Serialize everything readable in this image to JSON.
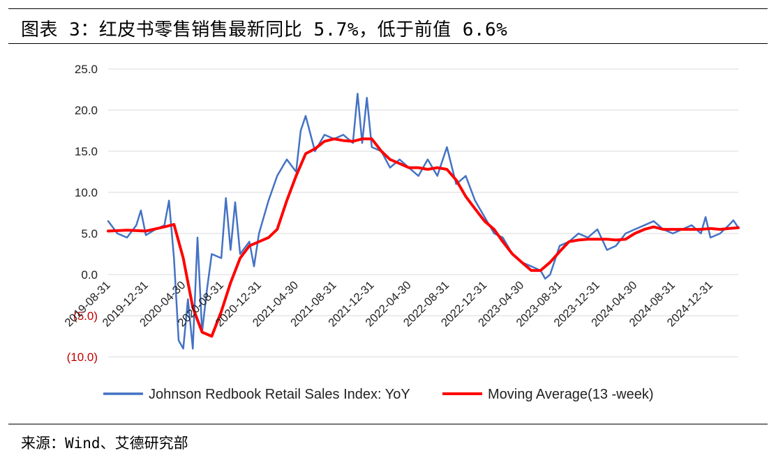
{
  "header": {
    "title": "图表 3：红皮书零售销售最新同比 5.7%，低于前值 6.6%"
  },
  "footer": {
    "source": "来源：Wind、艾德研究部"
  },
  "colors": {
    "series_blue": "#4472C4",
    "series_red": "#FF0000",
    "gridline": "#D9D9D9",
    "negative_tick": "#C00000"
  },
  "chart_data": {
    "type": "line",
    "title": "",
    "xlabel": "",
    "ylabel": "",
    "ylim": [
      -10,
      25
    ],
    "grid": true,
    "legend_position": "bottom",
    "y_ticks": [
      {
        "value": 25,
        "label": "25.0"
      },
      {
        "value": 20,
        "label": "20.0"
      },
      {
        "value": 15,
        "label": "15.0"
      },
      {
        "value": 10,
        "label": "10.0"
      },
      {
        "value": 5,
        "label": "5.0"
      },
      {
        "value": 0,
        "label": "0.0"
      },
      {
        "value": -5,
        "label": "(5.0)"
      },
      {
        "value": -10,
        "label": "(10.0)"
      }
    ],
    "x_ticks": [
      "2019-08-31",
      "2019-12-31",
      "2020-04-30",
      "2020-08-31",
      "2020-12-31",
      "2021-04-30",
      "2021-08-31",
      "2021-12-31",
      "2022-04-30",
      "2022-08-31",
      "2022-12-31",
      "2023-04-30",
      "2023-08-31",
      "2023-12-31",
      "2024-04-30",
      "2024-08-31",
      "2024-12-31"
    ],
    "x_range": [
      "2019-08-31",
      "2025-03-31"
    ],
    "series": [
      {
        "name": "Johnson Redbook Retail Sales Index: YoY",
        "color": "#4472C4",
        "points": [
          [
            "2019-08-31",
            6.5
          ],
          [
            "2019-09-30",
            5.0
          ],
          [
            "2019-10-31",
            4.5
          ],
          [
            "2019-11-30",
            6.0
          ],
          [
            "2019-12-15",
            7.8
          ],
          [
            "2019-12-31",
            4.8
          ],
          [
            "2020-01-31",
            5.5
          ],
          [
            "2020-02-29",
            6.0
          ],
          [
            "2020-03-15",
            9.0
          ],
          [
            "2020-03-31",
            2.0
          ],
          [
            "2020-04-15",
            -8.0
          ],
          [
            "2020-04-30",
            -9.0
          ],
          [
            "2020-05-15",
            -3.0
          ],
          [
            "2020-05-31",
            -9.0
          ],
          [
            "2020-06-15",
            4.5
          ],
          [
            "2020-06-30",
            -7.0
          ],
          [
            "2020-07-15",
            -2.0
          ],
          [
            "2020-07-31",
            2.5
          ],
          [
            "2020-08-31",
            2.0
          ],
          [
            "2020-09-15",
            9.3
          ],
          [
            "2020-09-30",
            3.0
          ],
          [
            "2020-10-15",
            8.8
          ],
          [
            "2020-10-31",
            2.5
          ],
          [
            "2020-11-30",
            4.0
          ],
          [
            "2020-12-15",
            1.0
          ],
          [
            "2020-12-31",
            5.0
          ],
          [
            "2021-01-31",
            9.0
          ],
          [
            "2021-02-28",
            12.0
          ],
          [
            "2021-03-31",
            14.0
          ],
          [
            "2021-04-30",
            12.5
          ],
          [
            "2021-05-15",
            17.5
          ],
          [
            "2021-05-31",
            19.3
          ],
          [
            "2021-06-30",
            15.0
          ],
          [
            "2021-07-31",
            17.0
          ],
          [
            "2021-08-31",
            16.5
          ],
          [
            "2021-09-30",
            17.0
          ],
          [
            "2021-10-31",
            16.0
          ],
          [
            "2021-11-15",
            22.0
          ],
          [
            "2021-11-30",
            16.0
          ],
          [
            "2021-12-15",
            21.5
          ],
          [
            "2021-12-31",
            15.5
          ],
          [
            "2022-01-31",
            15.0
          ],
          [
            "2022-02-28",
            13.0
          ],
          [
            "2022-03-31",
            14.0
          ],
          [
            "2022-04-30",
            13.0
          ],
          [
            "2022-05-31",
            12.0
          ],
          [
            "2022-06-30",
            14.0
          ],
          [
            "2022-07-31",
            12.0
          ],
          [
            "2022-08-31",
            15.5
          ],
          [
            "2022-09-30",
            11.0
          ],
          [
            "2022-10-31",
            12.0
          ],
          [
            "2022-11-30",
            9.0
          ],
          [
            "2022-12-31",
            7.0
          ],
          [
            "2023-01-31",
            5.0
          ],
          [
            "2023-02-28",
            4.5
          ],
          [
            "2023-03-31",
            2.5
          ],
          [
            "2023-04-30",
            1.5
          ],
          [
            "2023-05-31",
            1.0
          ],
          [
            "2023-06-30",
            0.5
          ],
          [
            "2023-07-15",
            -0.5
          ],
          [
            "2023-07-31",
            0.0
          ],
          [
            "2023-08-31",
            3.5
          ],
          [
            "2023-09-30",
            4.0
          ],
          [
            "2023-10-31",
            5.0
          ],
          [
            "2023-11-30",
            4.5
          ],
          [
            "2023-12-31",
            5.5
          ],
          [
            "2024-01-31",
            3.0
          ],
          [
            "2024-02-29",
            3.5
          ],
          [
            "2024-03-31",
            5.0
          ],
          [
            "2024-04-30",
            5.5
          ],
          [
            "2024-05-31",
            6.0
          ],
          [
            "2024-06-30",
            6.5
          ],
          [
            "2024-07-31",
            5.5
          ],
          [
            "2024-08-31",
            5.0
          ],
          [
            "2024-09-30",
            5.5
          ],
          [
            "2024-10-31",
            6.0
          ],
          [
            "2024-11-30",
            5.0
          ],
          [
            "2024-12-15",
            7.0
          ],
          [
            "2024-12-31",
            4.5
          ],
          [
            "2025-01-31",
            5.0
          ],
          [
            "2025-02-28",
            6.0
          ],
          [
            "2025-03-15",
            6.6
          ],
          [
            "2025-03-31",
            5.7
          ]
        ]
      },
      {
        "name": "Moving Average(13 -week)",
        "color": "#FF0000",
        "points": [
          [
            "2019-08-31",
            5.3
          ],
          [
            "2019-10-31",
            5.4
          ],
          [
            "2019-12-31",
            5.3
          ],
          [
            "2020-02-29",
            5.8
          ],
          [
            "2020-03-31",
            6.1
          ],
          [
            "2020-04-30",
            2.0
          ],
          [
            "2020-05-31",
            -4.0
          ],
          [
            "2020-06-30",
            -7.0
          ],
          [
            "2020-07-31",
            -7.5
          ],
          [
            "2020-08-31",
            -4.5
          ],
          [
            "2020-09-30",
            -1.0
          ],
          [
            "2020-10-31",
            2.0
          ],
          [
            "2020-11-30",
            3.5
          ],
          [
            "2020-12-31",
            4.0
          ],
          [
            "2021-01-31",
            4.5
          ],
          [
            "2021-02-28",
            5.5
          ],
          [
            "2021-03-31",
            9.0
          ],
          [
            "2021-04-30",
            12.0
          ],
          [
            "2021-05-31",
            14.7
          ],
          [
            "2021-06-30",
            15.3
          ],
          [
            "2021-07-31",
            16.2
          ],
          [
            "2021-08-31",
            16.5
          ],
          [
            "2021-09-30",
            16.3
          ],
          [
            "2021-10-31",
            16.2
          ],
          [
            "2021-11-30",
            16.5
          ],
          [
            "2021-12-31",
            16.5
          ],
          [
            "2022-01-31",
            15.0
          ],
          [
            "2022-02-28",
            14.0
          ],
          [
            "2022-03-31",
            13.5
          ],
          [
            "2022-04-30",
            13.0
          ],
          [
            "2022-05-31",
            13.0
          ],
          [
            "2022-06-30",
            12.8
          ],
          [
            "2022-07-31",
            13.0
          ],
          [
            "2022-08-31",
            12.8
          ],
          [
            "2022-09-30",
            11.5
          ],
          [
            "2022-10-31",
            9.5
          ],
          [
            "2022-11-30",
            8.0
          ],
          [
            "2022-12-31",
            6.5
          ],
          [
            "2023-01-31",
            5.5
          ],
          [
            "2023-02-28",
            4.0
          ],
          [
            "2023-03-31",
            2.5
          ],
          [
            "2023-04-30",
            1.5
          ],
          [
            "2023-05-31",
            0.5
          ],
          [
            "2023-06-30",
            0.5
          ],
          [
            "2023-07-31",
            1.5
          ],
          [
            "2023-08-31",
            2.8
          ],
          [
            "2023-09-30",
            4.0
          ],
          [
            "2023-10-31",
            4.2
          ],
          [
            "2023-11-30",
            4.3
          ],
          [
            "2023-12-31",
            4.3
          ],
          [
            "2024-01-31",
            4.3
          ],
          [
            "2024-02-29",
            4.2
          ],
          [
            "2024-03-31",
            4.3
          ],
          [
            "2024-04-30",
            5.0
          ],
          [
            "2024-05-31",
            5.5
          ],
          [
            "2024-06-30",
            5.8
          ],
          [
            "2024-07-31",
            5.5
          ],
          [
            "2024-08-31",
            5.5
          ],
          [
            "2024-09-30",
            5.5
          ],
          [
            "2024-10-31",
            5.5
          ],
          [
            "2024-11-30",
            5.5
          ],
          [
            "2024-12-31",
            5.6
          ],
          [
            "2025-01-31",
            5.5
          ],
          [
            "2025-02-28",
            5.6
          ],
          [
            "2025-03-31",
            5.7
          ]
        ]
      }
    ]
  }
}
